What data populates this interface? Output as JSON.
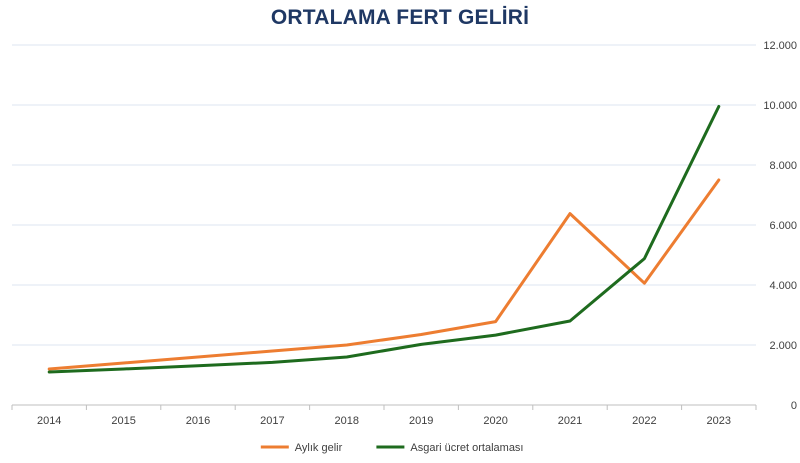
{
  "chart_data": {
    "type": "line",
    "title": "ORTALAMA FERT GELİRİ",
    "xlabel": "",
    "ylabel": "",
    "categories": [
      "2014",
      "2015",
      "2016",
      "2017",
      "2018",
      "2019",
      "2020",
      "2021",
      "2022",
      "2023"
    ],
    "y_ticks": [
      "0",
      "2.000",
      "4.000",
      "6.000",
      "8.000",
      "10.000",
      "12.000"
    ],
    "ylim": [
      0,
      12000
    ],
    "y_axis_side": "right",
    "grid": true,
    "legend_position": "bottom",
    "series": [
      {
        "name": "Aylık gelir",
        "color": "#ed7d31",
        "values": [
          1200,
          1400,
          1600,
          1800,
          2000,
          2350,
          2780,
          6380,
          4060,
          7500
        ]
      },
      {
        "name": "Asgari ücret ortalaması",
        "color": "#1e6b1e",
        "values": [
          1100,
          1200,
          1310,
          1420,
          1600,
          2020,
          2330,
          2800,
          4880,
          9950
        ]
      }
    ]
  }
}
